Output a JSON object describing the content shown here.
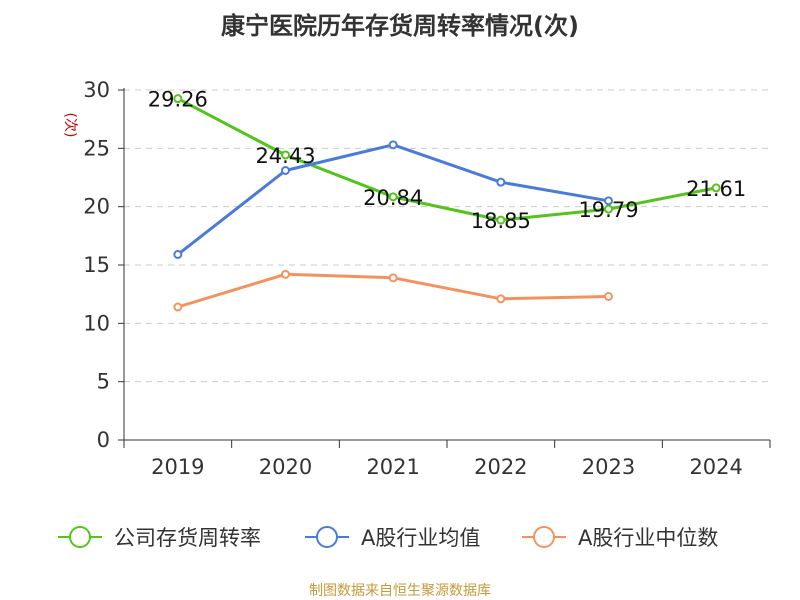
{
  "chart_data": {
    "type": "line",
    "title": "康宁医院历年存货周转率情况(次)",
    "ylabel": "(次)",
    "xlabel": "",
    "categories": [
      "2019",
      "2020",
      "2021",
      "2022",
      "2023",
      "2024"
    ],
    "ylim": [
      0,
      30
    ],
    "yticks": [
      0,
      5,
      10,
      15,
      20,
      25,
      30
    ],
    "grid": true,
    "legend_position": "bottom",
    "series": [
      {
        "name": "公司存货周转率",
        "color": "#52c41a",
        "values": [
          29.26,
          24.43,
          20.84,
          18.85,
          19.79,
          21.61
        ],
        "labels": [
          "29.26",
          "24.43",
          "20.84",
          "18.85",
          "19.79",
          "21.61"
        ]
      },
      {
        "name": "A股行业均值",
        "color": "#4a7bd8",
        "values": [
          15.9,
          23.1,
          25.3,
          22.1,
          20.5,
          null
        ]
      },
      {
        "name": "A股行业中位数",
        "color": "#f4925e",
        "values": [
          11.4,
          14.2,
          13.9,
          12.1,
          12.3,
          null
        ]
      }
    ]
  },
  "source": {
    "text": "制图数据来自恒生聚源数据库",
    "color": "#c49a3c"
  },
  "colors": {
    "axis": "#333333",
    "grid": "#cccccc",
    "ylabel": "#cc0000"
  }
}
